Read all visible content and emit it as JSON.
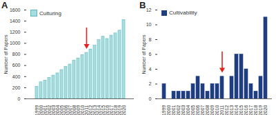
{
  "chart_data": [
    {
      "type": "bar",
      "title": "A",
      "y_label": "Number of Papers",
      "categories": [
        "1999",
        "2000",
        "2001",
        "2002",
        "2003",
        "2004",
        "2005",
        "2006",
        "2007",
        "2008",
        "2009",
        "2010",
        "2011",
        "2012",
        "2013",
        "2014",
        "2015",
        "2016",
        "2017",
        "2018",
        "2019",
        "2020"
      ],
      "series": [
        {
          "name": "Culturing",
          "color": "#a8dde0",
          "values": [
            220,
            300,
            330,
            380,
            420,
            460,
            520,
            580,
            620,
            690,
            730,
            790,
            830,
            890,
            960,
            1060,
            1120,
            1080,
            1140,
            1180,
            1230,
            1420
          ]
        }
      ],
      "ylim": [
        0,
        1600
      ],
      "yticks": [
        0,
        200,
        400,
        600,
        800,
        1000,
        1200,
        1400,
        1600
      ],
      "grid": false,
      "legend": "top-left",
      "arrow": "2011"
    },
    {
      "type": "bar",
      "title": "B",
      "y_label": "Number of Papers",
      "categories": [
        "1999",
        "2000",
        "2001",
        "2002",
        "2003",
        "2004",
        "2005",
        "2006",
        "2007",
        "2008",
        "2009",
        "2010",
        "2011",
        "2012",
        "2013",
        "2014",
        "2015",
        "2016",
        "2017",
        "2018",
        "2019",
        "2020"
      ],
      "series": [
        {
          "name": "Cultivability",
          "color": "#1f3e80",
          "values": [
            2,
            0,
            1,
            1,
            1,
            1,
            2,
            3,
            2,
            1,
            2,
            2,
            3,
            0,
            3,
            6,
            6,
            4,
            2,
            1,
            3,
            11
          ]
        }
      ],
      "ylim": [
        0,
        12
      ],
      "yticks": [
        0,
        2,
        4,
        6,
        8,
        10,
        12
      ],
      "grid": false,
      "legend": "top-left",
      "arrow": "2011"
    }
  ]
}
